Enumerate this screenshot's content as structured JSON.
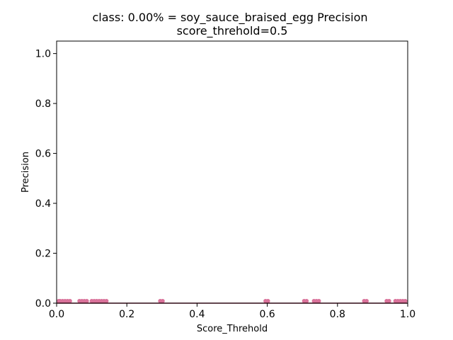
{
  "chart_data": {
    "type": "scatter",
    "title": "class: 0.00% = soy_sauce_braised_egg Precision",
    "subtitle": "score_threhold=0.5",
    "xlabel": "Score_Threhold",
    "ylabel": "Precision",
    "xlim": [
      0.0,
      1.0
    ],
    "ylim": [
      0.0,
      1.05
    ],
    "xticks": [
      "0.0",
      "0.2",
      "0.4",
      "0.6",
      "0.8",
      "1.0"
    ],
    "yticks": [
      "0.0",
      "0.2",
      "0.4",
      "0.6",
      "0.8",
      "1.0"
    ],
    "grid": false,
    "marker_color": "#d9729a",
    "line_color": "#8b1a3a",
    "line": {
      "x": [
        0.0,
        1.0
      ],
      "y": [
        0.0,
        0.0
      ]
    },
    "x": [
      0.003,
      0.01,
      0.017,
      0.024,
      0.031,
      0.038,
      0.065,
      0.072,
      0.079,
      0.086,
      0.1,
      0.107,
      0.114,
      0.121,
      0.128,
      0.135,
      0.142,
      0.295,
      0.302,
      0.595,
      0.602,
      0.705,
      0.712,
      0.733,
      0.74,
      0.747,
      0.876,
      0.883,
      0.94,
      0.947,
      0.965,
      0.972,
      0.979,
      0.986,
      0.993
    ],
    "y": [
      0.005,
      0.005,
      0.005,
      0.005,
      0.005,
      0.005,
      0.005,
      0.005,
      0.005,
      0.005,
      0.005,
      0.005,
      0.005,
      0.005,
      0.005,
      0.005,
      0.005,
      0.005,
      0.005,
      0.005,
      0.005,
      0.005,
      0.005,
      0.005,
      0.005,
      0.005,
      0.005,
      0.005,
      0.005,
      0.005,
      0.005,
      0.005,
      0.005,
      0.005,
      0.005
    ]
  }
}
